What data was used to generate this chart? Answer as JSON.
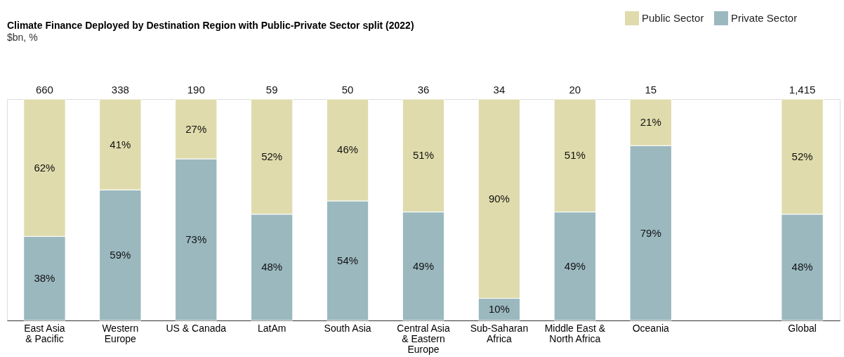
{
  "chart_data": {
    "type": "bar",
    "stacked": true,
    "title": "Climate Finance Deployed by Destination Region with Public-Private Sector split (2022)",
    "subtitle": "$bn, %",
    "categories": [
      "East Asia\n& Pacific",
      "Western\nEurope",
      "US & Canada",
      "LatAm",
      "South Asia",
      "Central Asia\n& Eastern\nEurope",
      "Sub-Saharan\nAfrica",
      "Middle East &\nNorth Africa",
      "Oceania",
      null,
      "Global"
    ],
    "series": [
      {
        "name": "Private Sector",
        "color": "#9bb8bf",
        "values": [
          38,
          59,
          73,
          48,
          54,
          49,
          10,
          49,
          79,
          null,
          48
        ],
        "value_labels": [
          "38%",
          "59%",
          "73%",
          "48%",
          "54%",
          "49%",
          "10%",
          "49%",
          "79%",
          null,
          "48%"
        ]
      },
      {
        "name": "Public Sector",
        "color": "#dfdbac",
        "values": [
          62,
          41,
          27,
          52,
          46,
          51,
          90,
          51,
          21,
          null,
          52
        ],
        "value_labels": [
          "62%",
          "41%",
          "27%",
          "52%",
          "46%",
          "51%",
          "90%",
          "51%",
          "21%",
          null,
          "52%"
        ]
      }
    ],
    "annotations": [
      {
        "text": "660",
        "x": "East Asia\n& Pacific",
        "y": 100
      },
      {
        "text": "338",
        "x": "Western\nEurope",
        "y": 100
      },
      {
        "text": "190",
        "x": "US & Canada",
        "y": 100
      },
      {
        "text": "59",
        "x": "LatAm",
        "y": 100
      },
      {
        "text": "50",
        "x": "South Asia",
        "y": 100
      },
      {
        "text": "36",
        "x": "Central Asia\n& Eastern\nEurope",
        "y": 100
      },
      {
        "text": "34",
        "x": "Sub-Saharan\nAfrica",
        "y": 100
      },
      {
        "text": "20",
        "x": "Middle East &\nNorth Africa",
        "y": 100
      },
      {
        "text": "15",
        "x": "Oceania",
        "y": 100
      },
      {
        "text": "1,415",
        "x": "Global",
        "y": 100
      }
    ],
    "legend": "top right",
    "tick_labels": "x",
    "grid": false
  }
}
